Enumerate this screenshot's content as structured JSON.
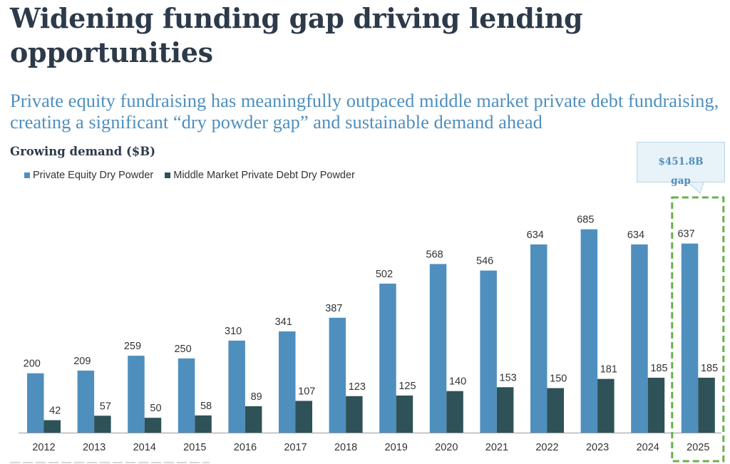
{
  "page": {
    "title": "Widening funding gap driving lending opportunities",
    "subtitle": "Private equity fundraising has meaningfully outpaced middle market private debt fundraising, creating a significant “dry powder gap” and sustainable demand ahead"
  },
  "callout": {
    "value": "$451.8B",
    "label": "gap",
    "highlight_category": "2025",
    "border_color": "#6ab04c",
    "fill_color": "#e8f2f9"
  },
  "colors": {
    "private_equity": "#4f8fbe",
    "private_debt": "#2e5257",
    "title": "#2d3a4a",
    "subtitle": "#4f8fbe",
    "axis": "#999999",
    "label": "#333333"
  },
  "chart_data": {
    "type": "bar",
    "title": "Growing demand ($B)",
    "xlabel": "",
    "ylabel": "",
    "ylim": [
      0,
      700
    ],
    "grid": false,
    "legend_position": "top-left",
    "categories": [
      "2012",
      "2013",
      "2014",
      "2015",
      "2016",
      "2017",
      "2018",
      "2019",
      "2020",
      "2021",
      "2022",
      "2023",
      "2024",
      "2025"
    ],
    "series": [
      {
        "name": "Private Equity Dry Powder",
        "values": [
          200,
          209,
          259,
          250,
          310,
          341,
          387,
          502,
          568,
          546,
          634,
          685,
          634,
          637
        ]
      },
      {
        "name": "Middle Market Private Debt Dry Powder",
        "values": [
          42,
          57,
          50,
          58,
          89,
          107,
          123,
          125,
          140,
          153,
          150,
          181,
          185,
          185
        ]
      }
    ],
    "annotations": [
      "$451.8B gap"
    ]
  }
}
